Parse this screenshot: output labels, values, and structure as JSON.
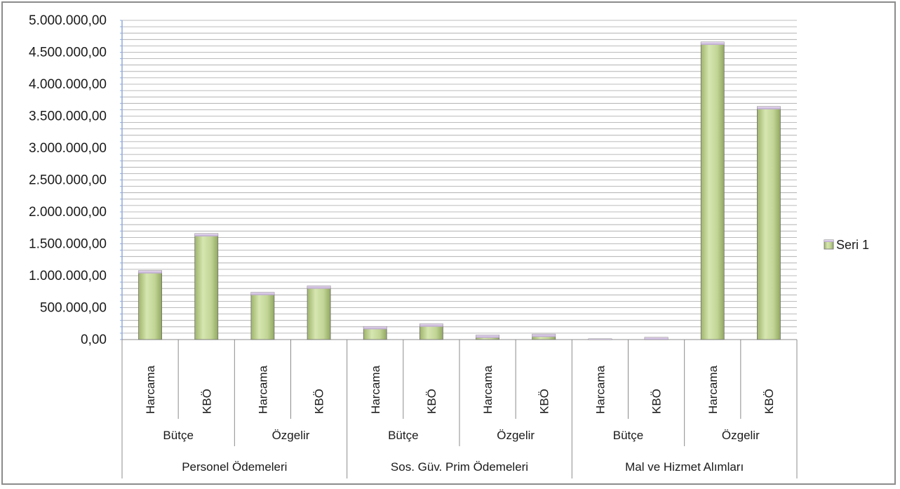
{
  "chart_data": {
    "type": "bar",
    "title": "",
    "xlabel": "",
    "ylabel": "",
    "ylim": [
      0,
      5000000
    ],
    "y_ticks": [
      "0,00",
      "500.000,00",
      "1.000.000,00",
      "1.500.000,00",
      "2.000.000,00",
      "2.500.000,00",
      "3.000.000,00",
      "3.500.000,00",
      "4.000.000,00",
      "4.500.000,00",
      "5.000.000,00"
    ],
    "grid": true,
    "legend_position": "right",
    "categories": [
      {
        "level1": "Harcama",
        "level2": "Bütçe",
        "level3": "Personel Ödemeleri"
      },
      {
        "level1": "KBÖ",
        "level2": "Bütçe",
        "level3": "Personel Ödemeleri"
      },
      {
        "level1": "Harcama",
        "level2": "Özgelir",
        "level3": "Personel Ödemeleri"
      },
      {
        "level1": "KBÖ",
        "level2": "Özgelir",
        "level3": "Personel Ödemeleri"
      },
      {
        "level1": "Harcama",
        "level2": "Bütçe",
        "level3": "Sos. Güv. Prim Ödemeleri"
      },
      {
        "level1": "KBÖ",
        "level2": "Bütçe",
        "level3": "Sos. Güv. Prim Ödemeleri"
      },
      {
        "level1": "Harcama",
        "level2": "Özgelir",
        "level3": "Sos. Güv. Prim Ödemeleri"
      },
      {
        "level1": "KBÖ",
        "level2": "Özgelir",
        "level3": "Sos. Güv. Prim Ödemeleri"
      },
      {
        "level1": "Harcama",
        "level2": "Bütçe",
        "level3": "Mal ve Hizmet Alımları"
      },
      {
        "level1": "KBÖ",
        "level2": "Bütçe",
        "level3": "Mal ve Hizmet Alımları"
      },
      {
        "level1": "Harcama",
        "level2": "Özgelir",
        "level3": "Mal ve Hizmet Alımları"
      },
      {
        "level1": "KBÖ",
        "level2": "Özgelir",
        "level3": "Mal ve Hizmet Alımları"
      }
    ],
    "level2_groups": [
      "Bütçe",
      "Özgelir",
      "Bütçe",
      "Özgelir",
      "Bütçe",
      "Özgelir"
    ],
    "level3_groups": [
      "Personel Ödemeleri",
      "Sos. Güv. Prim Ödemeleri",
      "Mal ve Hizmet Alımları"
    ],
    "series": [
      {
        "name": "Seri 1",
        "color": "#c4d79b",
        "values": [
          1080000,
          1660000,
          740000,
          840000,
          205000,
          245000,
          70000,
          85000,
          5000,
          35000,
          4660000,
          3650000
        ]
      }
    ]
  }
}
